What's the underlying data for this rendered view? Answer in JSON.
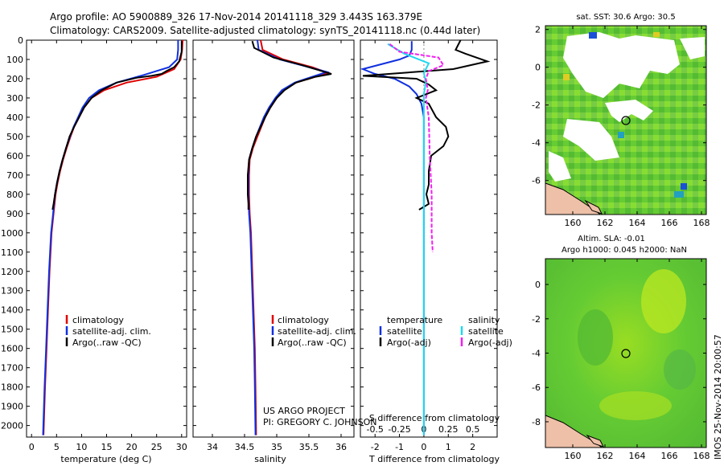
{
  "header": {
    "line1": "Argo profile: AO 5900889_326 17-Nov-2014 20141118_329 3.443S 163.379E",
    "line2": "Climatology: CARS2009. Satellite-adjusted climatology: synTS_20141118.nc (0.44d later)"
  },
  "side_stamp": "IMOS 25-Nov-2014 20:00:57",
  "colors": {
    "climatology": "#e00000",
    "satellite": "#1030e0",
    "argo": "#000000",
    "salinity_sat": "#20d8f0",
    "salinity_argo": "#f020f0"
  },
  "chart_data": [
    {
      "type": "line",
      "id": "temperature",
      "xlabel": "temperature (deg C)",
      "xlim": [
        -1,
        31
      ],
      "ylim": [
        2060,
        0
      ],
      "xticks": [
        0,
        5,
        10,
        15,
        20,
        25,
        30
      ],
      "yticks": [
        0,
        100,
        200,
        300,
        400,
        500,
        600,
        700,
        800,
        900,
        1000,
        1100,
        1200,
        1300,
        1400,
        1500,
        1600,
        1700,
        1800,
        1900,
        2000
      ],
      "legend": [
        "climatology",
        "satellite-adj. clim.",
        "Argo(..raw -QC)"
      ],
      "series": [
        {
          "name": "climatology",
          "color": "#e00000",
          "points": [
            [
              30.2,
              0
            ],
            [
              30.1,
              50
            ],
            [
              29.8,
              100
            ],
            [
              28.5,
              150
            ],
            [
              25,
              190
            ],
            [
              19,
              220
            ],
            [
              14.5,
              260
            ],
            [
              12,
              300
            ],
            [
              10.5,
              350
            ],
            [
              9.5,
              400
            ],
            [
              8.5,
              450
            ],
            [
              7.8,
              500
            ],
            [
              7,
              560
            ],
            [
              6.3,
              620
            ],
            [
              5.7,
              680
            ],
            [
              5.2,
              740
            ],
            [
              4.8,
              800
            ],
            [
              4.4,
              900
            ],
            [
              4,
              1000
            ],
            [
              3.6,
              1200
            ],
            [
              3.3,
              1400
            ],
            [
              3,
              1600
            ],
            [
              2.7,
              1800
            ],
            [
              2.4,
              2050
            ]
          ]
        },
        {
          "name": "satellite-adj. clim.",
          "color": "#1030e0",
          "points": [
            [
              29.3,
              0
            ],
            [
              29.3,
              50
            ],
            [
              29.1,
              100
            ],
            [
              27.5,
              140
            ],
            [
              22.5,
              180
            ],
            [
              17,
              220
            ],
            [
              13.5,
              260
            ],
            [
              11.5,
              300
            ],
            [
              10.2,
              350
            ],
            [
              9.3,
              400
            ],
            [
              8.4,
              450
            ],
            [
              7.7,
              500
            ],
            [
              6.9,
              560
            ],
            [
              6.2,
              620
            ],
            [
              5.6,
              680
            ],
            [
              5.1,
              740
            ],
            [
              4.7,
              800
            ],
            [
              4.3,
              900
            ],
            [
              3.9,
              1000
            ],
            [
              3.5,
              1200
            ],
            [
              3.2,
              1400
            ],
            [
              2.9,
              1600
            ],
            [
              2.6,
              1800
            ],
            [
              2.3,
              2050
            ]
          ]
        },
        {
          "name": "Argo(..raw -QC)",
          "color": "#000000",
          "points": [
            [
              30,
              5
            ],
            [
              30,
              60
            ],
            [
              29.5,
              110
            ],
            [
              28.5,
              140
            ],
            [
              27,
              160
            ],
            [
              26,
              175
            ],
            [
              24,
              185
            ],
            [
              21,
              195
            ],
            [
              17,
              220
            ],
            [
              14,
              260
            ],
            [
              12,
              300
            ],
            [
              10.5,
              350
            ],
            [
              9.5,
              400
            ],
            [
              8.5,
              450
            ],
            [
              7.6,
              500
            ],
            [
              6.9,
              560
            ],
            [
              6.2,
              620
            ],
            [
              5.6,
              680
            ],
            [
              5.1,
              740
            ],
            [
              4.7,
              800
            ],
            [
              4.4,
              850
            ],
            [
              4.2,
              880
            ]
          ]
        }
      ]
    },
    {
      "type": "line",
      "id": "salinity",
      "xlabel": "salinity",
      "xlim": [
        33.7,
        36.2
      ],
      "ylim": [
        2060,
        0
      ],
      "xticks": [
        34,
        34.5,
        35,
        35.5,
        36
      ],
      "legend": [
        "climatology",
        "satellite-adj. clim.",
        "Argo(..raw -QC)"
      ],
      "annotation": [
        "US ARGO PROJECT",
        "PI: GREGORY C. JOHNSON"
      ],
      "series": [
        {
          "name": "climatology",
          "color": "#e00000",
          "points": [
            [
              34.75,
              0
            ],
            [
              34.78,
              50
            ],
            [
              35.1,
              100
            ],
            [
              35.55,
              140
            ],
            [
              35.8,
              170
            ],
            [
              35.6,
              190
            ],
            [
              35.3,
              220
            ],
            [
              35.1,
              260
            ],
            [
              35,
              300
            ],
            [
              34.9,
              350
            ],
            [
              34.82,
              400
            ],
            [
              34.76,
              450
            ],
            [
              34.7,
              500
            ],
            [
              34.63,
              560
            ],
            [
              34.58,
              620
            ],
            [
              34.57,
              700
            ],
            [
              34.57,
              800
            ],
            [
              34.58,
              900
            ],
            [
              34.6,
              1000
            ],
            [
              34.62,
              1200
            ],
            [
              34.64,
              1400
            ],
            [
              34.66,
              1600
            ],
            [
              34.67,
              1800
            ],
            [
              34.68,
              2050
            ]
          ]
        },
        {
          "name": "satellite-adj. clim.",
          "color": "#1030e0",
          "points": [
            [
              34.7,
              0
            ],
            [
              34.72,
              50
            ],
            [
              35.05,
              100
            ],
            [
              35.5,
              140
            ],
            [
              35.78,
              165
            ],
            [
              35.55,
              190
            ],
            [
              35.28,
              220
            ],
            [
              35.08,
              260
            ],
            [
              34.98,
              300
            ],
            [
              34.88,
              350
            ],
            [
              34.8,
              400
            ],
            [
              34.74,
              450
            ],
            [
              34.68,
              500
            ],
            [
              34.62,
              560
            ],
            [
              34.57,
              620
            ],
            [
              34.56,
              700
            ],
            [
              34.56,
              800
            ],
            [
              34.57,
              900
            ],
            [
              34.59,
              1000
            ],
            [
              34.61,
              1200
            ],
            [
              34.63,
              1400
            ],
            [
              34.65,
              1600
            ],
            [
              34.66,
              1800
            ],
            [
              34.67,
              2050
            ]
          ]
        },
        {
          "name": "Argo(..raw -QC)",
          "color": "#000000",
          "points": [
            [
              34.62,
              5
            ],
            [
              34.65,
              40
            ],
            [
              34.95,
              90
            ],
            [
              35.4,
              130
            ],
            [
              35.7,
              160
            ],
            [
              35.85,
              175
            ],
            [
              35.6,
              190
            ],
            [
              35.3,
              220
            ],
            [
              35.12,
              260
            ],
            [
              35,
              300
            ],
            [
              34.9,
              350
            ],
            [
              34.82,
              400
            ],
            [
              34.75,
              450
            ],
            [
              34.68,
              500
            ],
            [
              34.62,
              560
            ],
            [
              34.57,
              620
            ],
            [
              34.55,
              700
            ],
            [
              34.55,
              800
            ],
            [
              34.56,
              850
            ],
            [
              34.56,
              880
            ]
          ]
        }
      ]
    },
    {
      "type": "line",
      "id": "differences",
      "xlabel_bottom": "T difference from climatology",
      "xlabel_top": "S difference from climatology",
      "xlim_T": [
        -2.6,
        3
      ],
      "xticks_T": [
        -2,
        -1,
        0,
        1,
        2
      ],
      "xlim_S": [
        -0.65,
        0.75
      ],
      "xticks_S": [
        -0.5,
        -0.25,
        0,
        0.25,
        0.5
      ],
      "ylim": [
        2060,
        0
      ],
      "legend_temperature": [
        "temperature",
        "satellite",
        "Argo(-adj)"
      ],
      "legend_salinity": [
        "salinity",
        "satellite",
        "Argo(-adj)"
      ],
      "series": [
        {
          "name": "satellite",
          "group": "temperature",
          "color": "#1030e0",
          "points": [
            [
              -0.5,
              5
            ],
            [
              -0.5,
              50
            ],
            [
              -0.6,
              80
            ],
            [
              -1,
              100
            ],
            [
              -2.5,
              150
            ],
            [
              -2,
              175
            ],
            [
              -1.2,
              200
            ],
            [
              -0.6,
              240
            ],
            [
              -0.3,
              280
            ],
            [
              -0.1,
              330
            ],
            [
              0,
              400
            ],
            [
              0,
              600
            ],
            [
              0,
              1000
            ],
            [
              0,
              2050
            ]
          ]
        },
        {
          "name": "Argo(-adj)",
          "group": "temperature",
          "color": "#000000",
          "points": [
            [
              1.5,
              0
            ],
            [
              1.3,
              50
            ],
            [
              1.7,
              70
            ],
            [
              2.6,
              110
            ],
            [
              1.2,
              150
            ],
            [
              -2.5,
              185
            ],
            [
              -0.3,
              200
            ],
            [
              0.2,
              230
            ],
            [
              0.5,
              260
            ],
            [
              -0.3,
              300
            ],
            [
              0.2,
              330
            ],
            [
              0.5,
              400
            ],
            [
              0.9,
              450
            ],
            [
              1,
              500
            ],
            [
              0.8,
              550
            ],
            [
              0.3,
              600
            ],
            [
              0.2,
              680
            ],
            [
              0.2,
              750
            ],
            [
              0.1,
              800
            ],
            [
              0.2,
              850
            ],
            [
              -0.2,
              880
            ]
          ]
        },
        {
          "name": "satellite",
          "group": "salinity",
          "color": "#20d8f0",
          "points": [
            [
              -0.37,
              20
            ],
            [
              -0.2,
              70
            ],
            [
              0.05,
              120
            ],
            [
              0,
              170
            ],
            [
              0.02,
              220
            ],
            [
              0,
              280
            ],
            [
              0,
              350
            ],
            [
              0,
              500
            ],
            [
              0,
              1000
            ],
            [
              0,
              2050
            ]
          ]
        },
        {
          "name": "Argo(-adj)",
          "group": "salinity",
          "color": "#f020f0",
          "points": [
            [
              -0.35,
              20
            ],
            [
              -0.25,
              60
            ],
            [
              0.15,
              90
            ],
            [
              0.2,
              130
            ],
            [
              0.05,
              160
            ],
            [
              0.02,
              200
            ],
            [
              0.04,
              260
            ],
            [
              0.02,
              300
            ],
            [
              0.05,
              400
            ],
            [
              0.06,
              600
            ],
            [
              0.08,
              800
            ],
            [
              0.08,
              1000
            ],
            [
              0.09,
              1100
            ]
          ]
        }
      ]
    },
    {
      "type": "heatmap",
      "id": "sst_map",
      "title": "sat. SST: 30.6 Argo: 30.5",
      "xlim": [
        158.3,
        168.3
      ],
      "ylim": [
        -7.8,
        2.2
      ],
      "xticks": [
        160,
        162,
        164,
        166,
        168
      ],
      "yticks": [
        -6,
        -4,
        -2,
        0,
        2
      ],
      "argo_position": [
        163.379,
        -3.443
      ]
    },
    {
      "type": "heatmap",
      "id": "sla_map",
      "title": "Altim. SLA: -0.01",
      "subtitle": "Argo h1000: 0.045 h2000: NaN",
      "xlim": [
        158.3,
        168.3
      ],
      "ylim": [
        -9.5,
        1.5
      ],
      "xticks": [
        160,
        162,
        164,
        166,
        168
      ],
      "yticks": [
        -8,
        -6,
        -4,
        -2,
        0
      ],
      "argo_position": [
        163.379,
        -3.443
      ]
    }
  ]
}
